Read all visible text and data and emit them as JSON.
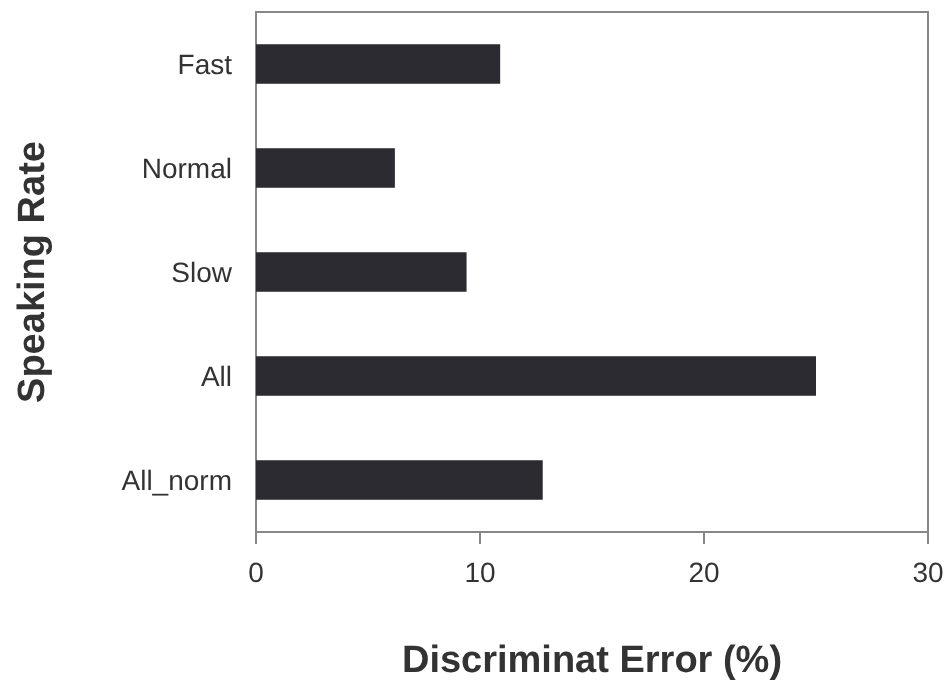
{
  "chart_data": {
    "type": "bar",
    "orientation": "horizontal",
    "xlabel": "Discriminat Error (%)",
    "ylabel": "Speaking Rate",
    "categories": [
      "Fast",
      "Normal",
      "Slow",
      "All",
      "All_norm"
    ],
    "values": [
      10.9,
      6.2,
      9.4,
      25.0,
      12.8
    ],
    "color": "#2b2b31",
    "xlim": [
      0,
      30
    ],
    "xticks": [
      0,
      10,
      20,
      30
    ],
    "grid": false
  }
}
